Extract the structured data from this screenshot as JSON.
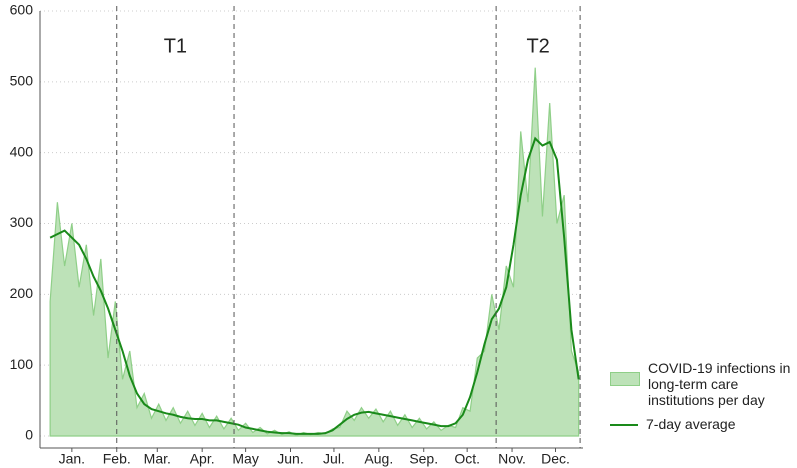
{
  "chart_data": {
    "type": "area",
    "x": [
      -15,
      -10,
      -5,
      0,
      5,
      10,
      15,
      20,
      25,
      30,
      35,
      40,
      45,
      50,
      55,
      60,
      65,
      70,
      75,
      80,
      85,
      90,
      95,
      100,
      105,
      110,
      115,
      120,
      125,
      130,
      135,
      140,
      145,
      150,
      155,
      160,
      165,
      170,
      175,
      180,
      185,
      190,
      195,
      200,
      205,
      210,
      215,
      220,
      225,
      230,
      235,
      240,
      245,
      250,
      255,
      260,
      265,
      270,
      275,
      280,
      285,
      290,
      295,
      300,
      305,
      310,
      315,
      320,
      325,
      330,
      335,
      340,
      345,
      350
    ],
    "series": [
      {
        "name": "COVID-19 infections in long-term care institutions per day",
        "style": "area",
        "color": "#8fcf88",
        "fill": "#bde2b8",
        "values": [
          190,
          330,
          240,
          300,
          210,
          270,
          170,
          250,
          110,
          190,
          80,
          120,
          40,
          60,
          25,
          45,
          22,
          40,
          18,
          35,
          15,
          32,
          12,
          28,
          10,
          25,
          8,
          18,
          5,
          12,
          3,
          8,
          2,
          6,
          1,
          5,
          2,
          5,
          3,
          10,
          12,
          35,
          22,
          40,
          25,
          38,
          20,
          35,
          15,
          30,
          12,
          25,
          10,
          20,
          8,
          15,
          12,
          40,
          35,
          110,
          120,
          200,
          150,
          240,
          210,
          430,
          330,
          520,
          310,
          470,
          300,
          340,
          120,
          90
        ]
      },
      {
        "name": "7-day average",
        "style": "line",
        "color": "#1a8a1a",
        "values": [
          280,
          285,
          290,
          280,
          270,
          250,
          225,
          205,
          180,
          150,
          120,
          85,
          60,
          45,
          38,
          35,
          32,
          30,
          27,
          25,
          24,
          24,
          22,
          22,
          20,
          18,
          16,
          12,
          10,
          8,
          6,
          5,
          4,
          4,
          3,
          3,
          3,
          3,
          4,
          8,
          16,
          24,
          30,
          33,
          34,
          32,
          30,
          28,
          26,
          24,
          22,
          20,
          18,
          16,
          14,
          14,
          18,
          30,
          55,
          90,
          130,
          165,
          180,
          210,
          270,
          340,
          390,
          420,
          410,
          415,
          390,
          280,
          150,
          80
        ]
      }
    ],
    "xlim": [
      -22,
      353
    ],
    "xticks": [
      {
        "value": 0,
        "label": "Jan."
      },
      {
        "value": 31,
        "label": "Feb."
      },
      {
        "value": 59,
        "label": "Mar."
      },
      {
        "value": 90,
        "label": "Apr."
      },
      {
        "value": 120,
        "label": "May"
      },
      {
        "value": 151,
        "label": "Jun."
      },
      {
        "value": 181,
        "label": "Jul."
      },
      {
        "value": 212,
        "label": "Aug."
      },
      {
        "value": 243,
        "label": "Sep."
      },
      {
        "value": 273,
        "label": "Oct."
      },
      {
        "value": 304,
        "label": "Nov."
      },
      {
        "value": 334,
        "label": "Dec."
      }
    ],
    "ylim": [
      0,
      600
    ],
    "yticks": [
      0,
      100,
      200,
      300,
      400,
      500,
      600
    ],
    "grid": true,
    "periods": [
      {
        "label": "T1",
        "start": 31,
        "end": 112
      },
      {
        "label": "T2",
        "start": 293,
        "end": 351
      }
    ],
    "legend": "bottom-right"
  }
}
